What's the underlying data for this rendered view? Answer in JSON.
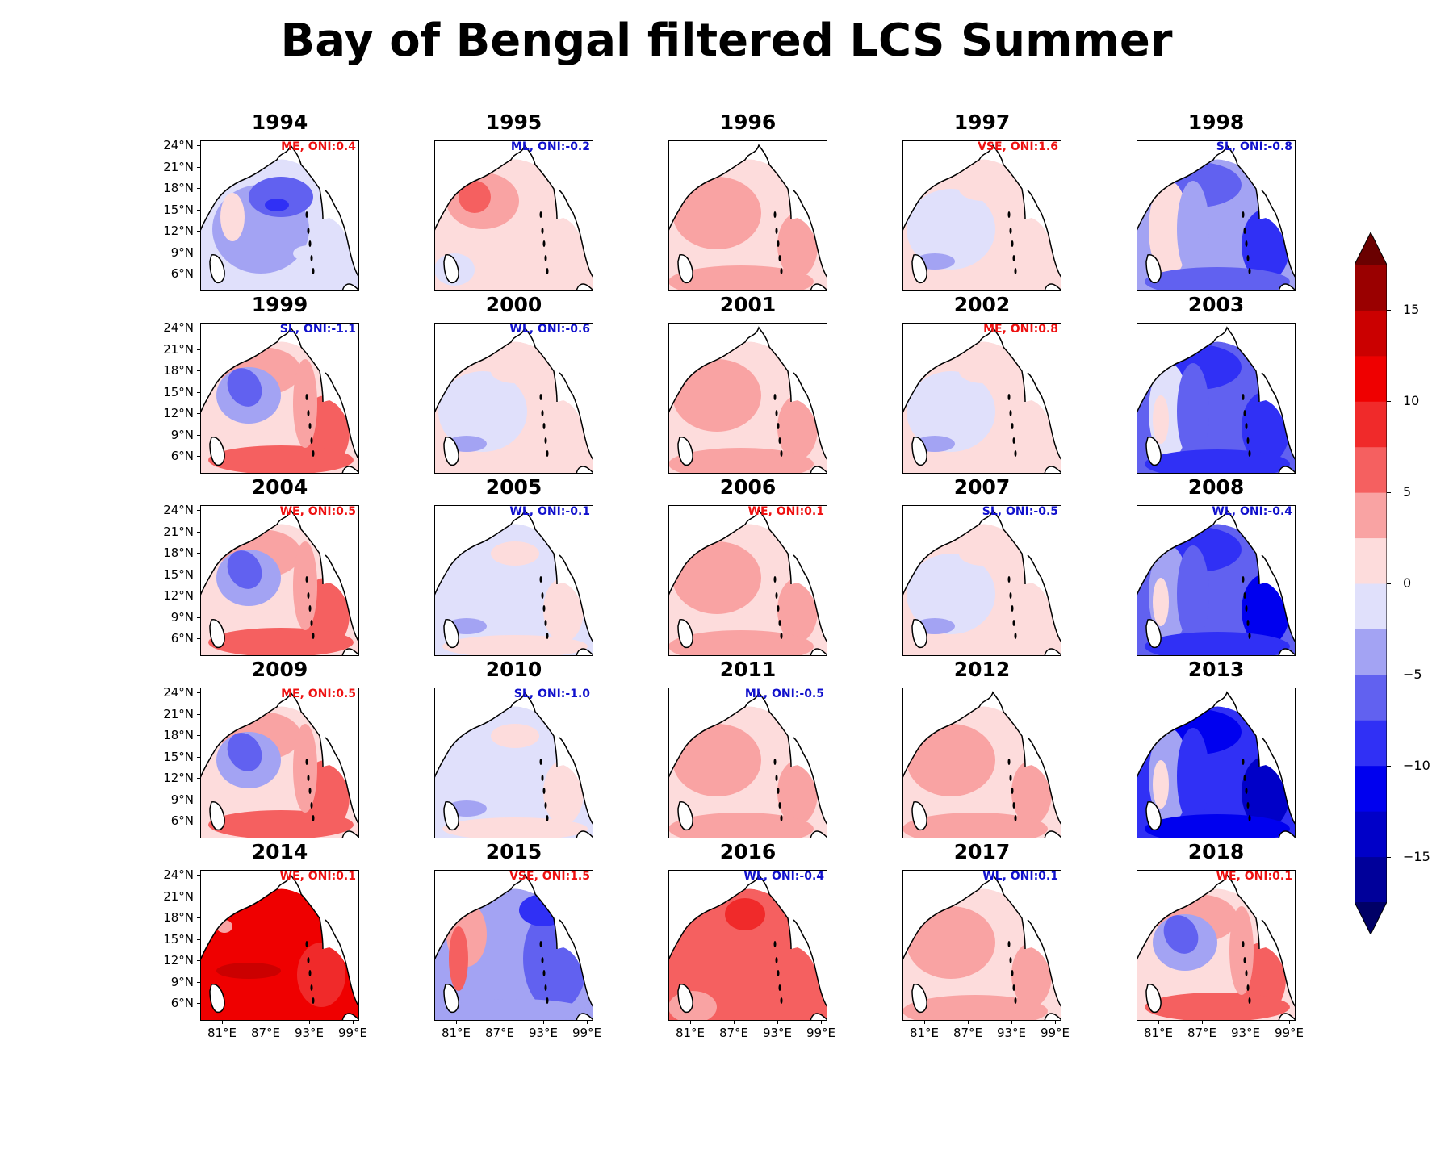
{
  "title": "Bay of Bengal filtered LCS Summer",
  "chart_data": {
    "type": "heatmap",
    "title": "Bay of Bengal filtered LCS Summer",
    "y_tick_labels": [
      "24°N",
      "21°N",
      "18°N",
      "15°N",
      "12°N",
      "9°N",
      "6°N"
    ],
    "x_tick_labels": [
      "81°E",
      "87°E",
      "93°E",
      "99°E"
    ],
    "colorbar": {
      "ticks": [
        "15",
        "10",
        "5",
        "0",
        "−5",
        "−10",
        "−15"
      ],
      "tick_values": [
        15,
        10,
        5,
        0,
        -5,
        -10,
        -15
      ],
      "range": [
        -17.5,
        17.5
      ],
      "level_colors": [
        "#000066",
        "#00009a",
        "#0000c8",
        "#0000ef",
        "#3030f5",
        "#6161f0",
        "#a3a3f3",
        "#e0e0fb",
        "#fddcdc",
        "#f9a3a3",
        "#f56060",
        "#f02a2a",
        "#ef0000",
        "#cb0000",
        "#9a0000",
        "#6a0000"
      ],
      "extend": "both"
    },
    "panels": [
      {
        "year": "1994",
        "annotation": "ME, ONI:0.4",
        "annotation_color": "#ee1111",
        "pattern": "blue-center",
        "mean_level": -2
      },
      {
        "year": "1995",
        "annotation": "ML, ONI:-0.2",
        "annotation_color": "#1111cc",
        "pattern": "pink-center",
        "mean_level": 2
      },
      {
        "year": "1996",
        "annotation": "",
        "annotation_color": "#000000",
        "pattern": "pink",
        "mean_level": 2
      },
      {
        "year": "1997",
        "annotation": "VSE, ONI:1.6",
        "annotation_color": "#ee1111",
        "pattern": "lavender",
        "mean_level": 0
      },
      {
        "year": "1998",
        "annotation": "SL, ONI:-0.8",
        "annotation_color": "#1111cc",
        "pattern": "blue-edges",
        "mean_level": -4
      },
      {
        "year": "1999",
        "annotation": "SL, ONI:-1.1",
        "annotation_color": "#1111cc",
        "pattern": "blue-west-red-east",
        "mean_level": 0
      },
      {
        "year": "2000",
        "annotation": "WL, ONI:-0.6",
        "annotation_color": "#1111cc",
        "pattern": "lavender",
        "mean_level": 0
      },
      {
        "year": "2001",
        "annotation": "",
        "annotation_color": "#000000",
        "pattern": "pink",
        "mean_level": 2
      },
      {
        "year": "2002",
        "annotation": "ME, ONI:0.8",
        "annotation_color": "#ee1111",
        "pattern": "lavender",
        "mean_level": 0
      },
      {
        "year": "2003",
        "annotation": "",
        "annotation_color": "#000000",
        "pattern": "blue-edges",
        "mean_level": -6
      },
      {
        "year": "2004",
        "annotation": "WE, ONI:0.5",
        "annotation_color": "#ee1111",
        "pattern": "blue-west-red-east",
        "mean_level": 2
      },
      {
        "year": "2005",
        "annotation": "WL, ONI:-0.1",
        "annotation_color": "#1111cc",
        "pattern": "lavender",
        "mean_level": -1
      },
      {
        "year": "2006",
        "annotation": "WE, ONI:0.1",
        "annotation_color": "#ee1111",
        "pattern": "pink",
        "mean_level": 2
      },
      {
        "year": "2007",
        "annotation": "SL, ONI:-0.5",
        "annotation_color": "#1111cc",
        "pattern": "lavender",
        "mean_level": 0
      },
      {
        "year": "2008",
        "annotation": "WL, ONI:-0.4",
        "annotation_color": "#1111cc",
        "pattern": "blue-edges",
        "mean_level": -7
      },
      {
        "year": "2009",
        "annotation": "ME, ONI:0.5",
        "annotation_color": "#ee1111",
        "pattern": "blue-west-red-east",
        "mean_level": 2
      },
      {
        "year": "2010",
        "annotation": "SL, ONI:-1.0",
        "annotation_color": "#1111cc",
        "pattern": "lavender",
        "mean_level": -1
      },
      {
        "year": "2011",
        "annotation": "ML, ONI:-0.5",
        "annotation_color": "#1111cc",
        "pattern": "pink",
        "mean_level": 1
      },
      {
        "year": "2012",
        "annotation": "",
        "annotation_color": "#000000",
        "pattern": "pink",
        "mean_level": 1
      },
      {
        "year": "2013",
        "annotation": "",
        "annotation_color": "#000000",
        "pattern": "blue-edges",
        "mean_level": -9
      },
      {
        "year": "2014",
        "annotation": "WE, ONI:0.1",
        "annotation_color": "#ee1111",
        "pattern": "red",
        "mean_level": 10
      },
      {
        "year": "2015",
        "annotation": "VSE, ONI:1.5",
        "annotation_color": "#ee1111",
        "pattern": "blue-east",
        "mean_level": -5
      },
      {
        "year": "2016",
        "annotation": "WL, ONI:-0.4",
        "annotation_color": "#1111cc",
        "pattern": "red-medium",
        "mean_level": 5
      },
      {
        "year": "2017",
        "annotation": "WL, ONI:0.1",
        "annotation_color": "#1111cc",
        "pattern": "pink",
        "mean_level": 2
      },
      {
        "year": "2018",
        "annotation": "WE, ONI:0.1",
        "annotation_color": "#ee1111",
        "pattern": "blue-west-red-east",
        "mean_level": 1
      }
    ]
  }
}
